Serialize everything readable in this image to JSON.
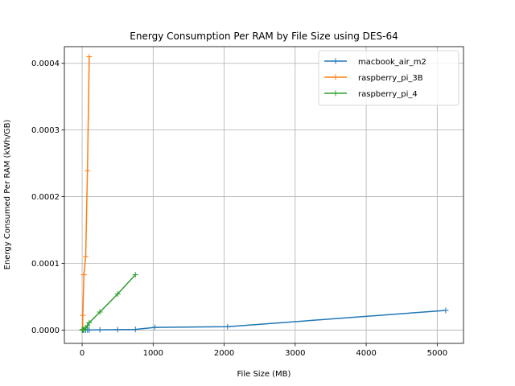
{
  "chart_data": {
    "type": "line",
    "title": "Energy Consumption Per RAM by File Size using DES-64",
    "xlabel": "File Size (MB)",
    "ylabel": "Energy Consumed Per RAM (kWh/GB)",
    "xlim": [
      -250,
      5370
    ],
    "ylim": [
      -2e-05,
      0.000425
    ],
    "xticks": [
      0,
      1000,
      2000,
      3000,
      4000,
      5000
    ],
    "xtick_labels": [
      "0",
      "1000",
      "2000",
      "3000",
      "4000",
      "5000"
    ],
    "yticks": [
      0,
      0.0001,
      0.0002,
      0.0003,
      0.0004
    ],
    "ytick_labels": [
      "0.0000",
      "0.0001",
      "0.0002",
      "0.0003",
      "0.0004"
    ],
    "grid": true,
    "legend_position": "top-right",
    "marker": "+",
    "series": [
      {
        "name": "macbook_air_m2",
        "color": "#1f77b4",
        "x": [
          1,
          5,
          10,
          25,
          50,
          75,
          100,
          250,
          500,
          750,
          1024,
          2048,
          5120
        ],
        "y": [
          0.0,
          0.0,
          0.0,
          0.0,
          0.0,
          0.0,
          0.0,
          3e-07,
          6e-07,
          1e-06,
          4e-06,
          5e-06,
          2.95e-05
        ]
      },
      {
        "name": "raspberry_pi_3B",
        "color": "#ff7f0e",
        "x": [
          1,
          5,
          10,
          25,
          50,
          75,
          100
        ],
        "y": [
          0.0,
          1e-06,
          2.2e-05,
          8.3e-05,
          0.00011,
          0.000239,
          0.00041
        ]
      },
      {
        "name": "raspberry_pi_4",
        "color": "#2ca02c",
        "x": [
          1,
          5,
          10,
          25,
          50,
          75,
          100,
          250,
          500,
          750
        ],
        "y": [
          0.0,
          1e-07,
          3e-07,
          1.2e-06,
          3e-06,
          6.5e-06,
          1.1e-05,
          2.7e-05,
          5.4e-05,
          8.3e-05
        ]
      }
    ]
  }
}
